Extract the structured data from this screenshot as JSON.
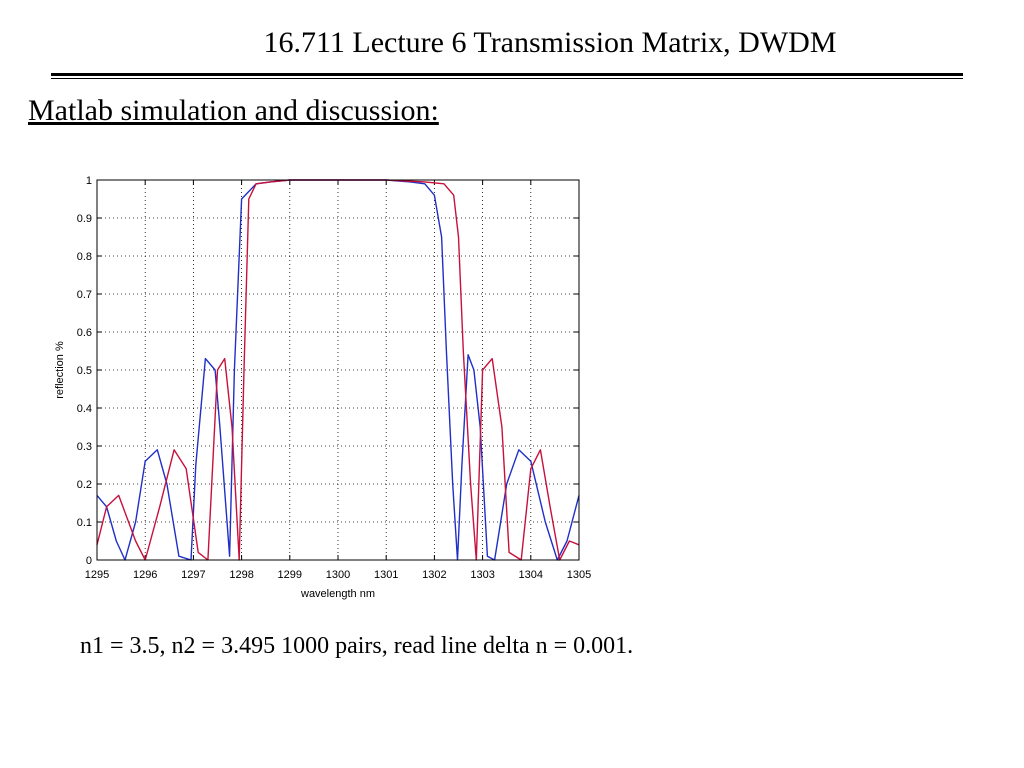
{
  "slide": {
    "title": "16.711 Lecture 6 Transmission Matrix, DWDM",
    "heading": "Matlab simulation and discussion:",
    "caption": "n1 = 3.5, n2 = 3.495 1000 pairs, read line delta n = 0.001."
  },
  "chart_data": {
    "type": "line",
    "title": "",
    "xlabel": "wavelength nm",
    "ylabel": "reflection %",
    "xlim": [
      1295,
      1305
    ],
    "ylim": [
      0,
      1
    ],
    "xticks": [
      1295,
      1296,
      1297,
      1298,
      1299,
      1300,
      1301,
      1302,
      1303,
      1304,
      1305
    ],
    "yticks": [
      0,
      0.1,
      0.2,
      0.3,
      0.4,
      0.5,
      0.6,
      0.7,
      0.8,
      0.9,
      1
    ],
    "ytick_labels": [
      "0",
      "0.1",
      "0.2",
      "0.3",
      "0.4",
      "0.5",
      "0.6",
      "0.7",
      "0.8",
      "0.9",
      "1"
    ],
    "grid": true,
    "series": [
      {
        "color": "#1f2fc8",
        "x": [
          1295.0,
          1295.2,
          1295.4,
          1295.58,
          1295.8,
          1296.0,
          1296.25,
          1296.45,
          1296.7,
          1296.95,
          1297.05,
          1297.25,
          1297.45,
          1297.55,
          1297.75,
          1297.85,
          1298.0,
          1298.3,
          1298.6,
          1299.0,
          1300.0,
          1301.0,
          1301.5,
          1301.8,
          1302.0,
          1302.15,
          1302.25,
          1302.38,
          1302.48,
          1302.57,
          1302.7,
          1302.82,
          1302.95,
          1303.1,
          1303.25,
          1303.5,
          1303.75,
          1304.0,
          1304.3,
          1304.55,
          1304.75,
          1305.0
        ],
        "y": [
          0.17,
          0.14,
          0.05,
          0.0,
          0.1,
          0.26,
          0.29,
          0.2,
          0.01,
          0.0,
          0.25,
          0.53,
          0.5,
          0.35,
          0.01,
          0.5,
          0.95,
          0.99,
          0.995,
          1.0,
          1.0,
          1.0,
          0.995,
          0.99,
          0.96,
          0.85,
          0.55,
          0.2,
          0.0,
          0.25,
          0.54,
          0.5,
          0.35,
          0.01,
          0.0,
          0.2,
          0.29,
          0.26,
          0.1,
          0.0,
          0.05,
          0.17
        ]
      },
      {
        "color": "#c8103c",
        "x": [
          1295.0,
          1295.2,
          1295.45,
          1295.8,
          1296.0,
          1296.3,
          1296.6,
          1296.85,
          1297.1,
          1297.3,
          1297.5,
          1297.65,
          1297.8,
          1297.95,
          1298.05,
          1298.15,
          1298.3,
          1298.6,
          1299.0,
          1300.0,
          1301.0,
          1301.8,
          1302.2,
          1302.4,
          1302.5,
          1302.6,
          1302.75,
          1302.87,
          1303.0,
          1303.2,
          1303.4,
          1303.55,
          1303.8,
          1304.0,
          1304.2,
          1304.4,
          1304.6,
          1304.8,
          1305.0
        ],
        "y": [
          0.04,
          0.14,
          0.17,
          0.05,
          0.0,
          0.14,
          0.29,
          0.24,
          0.02,
          0.0,
          0.5,
          0.53,
          0.35,
          0.0,
          0.5,
          0.95,
          0.99,
          0.995,
          1.0,
          1.0,
          1.0,
          0.995,
          0.99,
          0.96,
          0.85,
          0.55,
          0.2,
          0.0,
          0.5,
          0.53,
          0.35,
          0.02,
          0.0,
          0.24,
          0.29,
          0.14,
          0.0,
          0.05,
          0.04
        ]
      }
    ]
  }
}
